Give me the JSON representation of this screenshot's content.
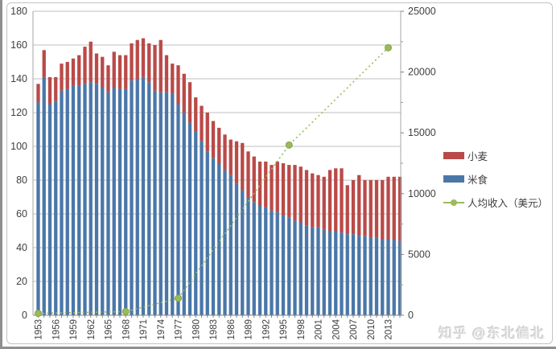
{
  "watermark": {
    "text": "知乎 @东北偏北"
  },
  "chart_data": {
    "type": "bar",
    "subtype": "stacked-bars-with-line",
    "title": "",
    "xlabel": "",
    "ylabel_left": "",
    "ylabel_right": "",
    "grid": true,
    "legend_position": "right",
    "x": [
      1953,
      1954,
      1955,
      1956,
      1957,
      1958,
      1959,
      1960,
      1961,
      1962,
      1963,
      1964,
      1965,
      1966,
      1967,
      1968,
      1969,
      1970,
      1971,
      1972,
      1973,
      1974,
      1975,
      1976,
      1977,
      1978,
      1979,
      1980,
      1981,
      1982,
      1983,
      1984,
      1985,
      1986,
      1987,
      1988,
      1989,
      1990,
      1991,
      1992,
      1993,
      1994,
      1995,
      1996,
      1997,
      1998,
      1999,
      2000,
      2001,
      2002,
      2003,
      2004,
      2005,
      2006,
      2007,
      2008,
      2009,
      2010,
      2011,
      2012,
      2013,
      2014,
      2015
    ],
    "x_tick_labels": [
      "1953",
      "1956",
      "1959",
      "1962",
      "1965",
      "1968",
      "1971",
      "1974",
      "1977",
      "1980",
      "1983",
      "1986",
      "1989",
      "1992",
      "1995",
      "1998",
      "2001",
      "2004",
      "2007",
      "2010",
      "2013"
    ],
    "left_axis": {
      "min": 0,
      "max": 180,
      "step": 20,
      "tick_labels": [
        "0",
        "20",
        "40",
        "60",
        "80",
        "100",
        "120",
        "140",
        "160",
        "180"
      ]
    },
    "right_axis": {
      "min": 0,
      "max": 25000,
      "step": 5000,
      "tick_labels": [
        "0",
        "5000",
        "10000",
        "15000",
        "20000",
        "25000"
      ]
    },
    "series": [
      {
        "name": "米食",
        "type": "bar",
        "stack_order": 0,
        "color": "#4a77a8",
        "values": [
          126,
          141,
          125,
          127,
          133,
          134,
          136,
          136,
          137,
          138,
          137,
          135,
          132,
          135,
          134,
          134,
          139,
          140,
          141,
          138,
          133,
          132,
          132,
          131,
          125,
          120,
          114,
          109,
          103,
          97,
          93,
          90,
          86,
          83,
          78,
          74,
          70,
          67,
          65,
          64,
          62,
          61,
          59,
          58,
          56,
          55,
          53,
          52,
          52,
          51,
          50,
          50,
          49,
          48,
          48,
          47,
          47,
          46,
          46,
          45,
          45,
          45,
          44
        ]
      },
      {
        "name": "小麦",
        "type": "bar",
        "stack_order": 1,
        "color": "#b94a48",
        "values": [
          11,
          16,
          16,
          14,
          16,
          16,
          16,
          18,
          22,
          24,
          18,
          18,
          16,
          21,
          20,
          20,
          22,
          23,
          23,
          23,
          27,
          31,
          22,
          18,
          23,
          23,
          24,
          20,
          21,
          23,
          22,
          21,
          21,
          21,
          25,
          28,
          27,
          27,
          26,
          27,
          27,
          30,
          31,
          31,
          33,
          33,
          33,
          32,
          31,
          31,
          36,
          37,
          38,
          29,
          32,
          36,
          33,
          34,
          34,
          35,
          37,
          37,
          38
        ]
      },
      {
        "name": "人均收入（美元）",
        "type": "line",
        "axis": "right",
        "color": "#9bbb59",
        "line_style": "dotted",
        "points": [
          {
            "year": 1953,
            "usd": 150
          },
          {
            "year": 1968,
            "usd": 300
          },
          {
            "year": 1977,
            "usd": 1400
          },
          {
            "year": 1996,
            "usd": 14000
          },
          {
            "year": 2013,
            "usd": 22000
          }
        ]
      }
    ],
    "legend": [
      "小麦",
      "米食",
      "人均收入（美元）"
    ]
  }
}
